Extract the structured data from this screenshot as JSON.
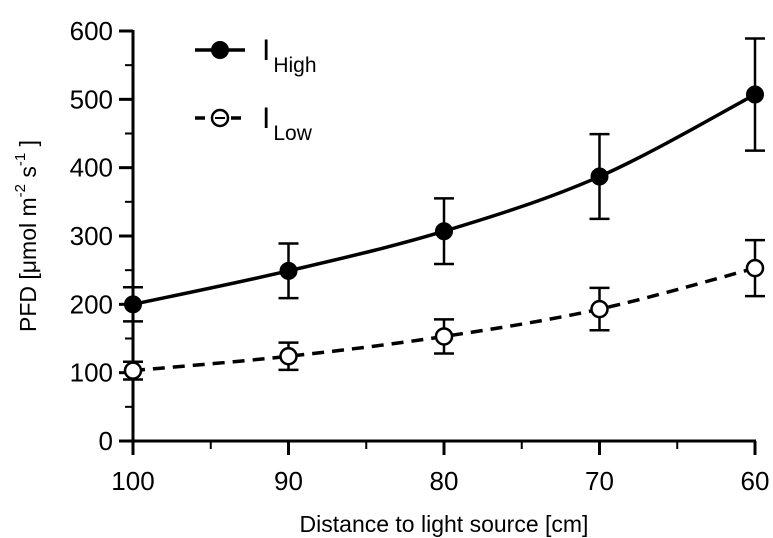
{
  "chart_data": {
    "type": "line",
    "xlabel": "Distance to light source [cm]",
    "ylabel": {
      "prefix": "PFD [μmol m",
      "exp1": "-2",
      "mid": " s",
      "exp2": "-1",
      "suffix": " ]"
    },
    "x_reversed": true,
    "xlim": [
      100,
      60
    ],
    "ylim": [
      0,
      600
    ],
    "x_ticks": [
      100,
      90,
      80,
      70,
      60
    ],
    "y_ticks": [
      0,
      100,
      200,
      300,
      400,
      500,
      600
    ],
    "x": [
      100,
      90,
      80,
      70,
      60
    ],
    "series": [
      {
        "name": "I",
        "subscript": "High",
        "marker": "filled-circle",
        "line": "solid",
        "values": [
          200,
          249,
          307,
          387,
          507
        ],
        "err": [
          25,
          40,
          48,
          62,
          82
        ]
      },
      {
        "name": "I",
        "subscript": "Low",
        "marker": "open-circle",
        "line": "dashed",
        "values": [
          103,
          124,
          153,
          193,
          253
        ],
        "err": [
          13,
          20,
          25,
          31,
          41
        ]
      }
    ],
    "legend_position": "top-left",
    "grid": false
  }
}
